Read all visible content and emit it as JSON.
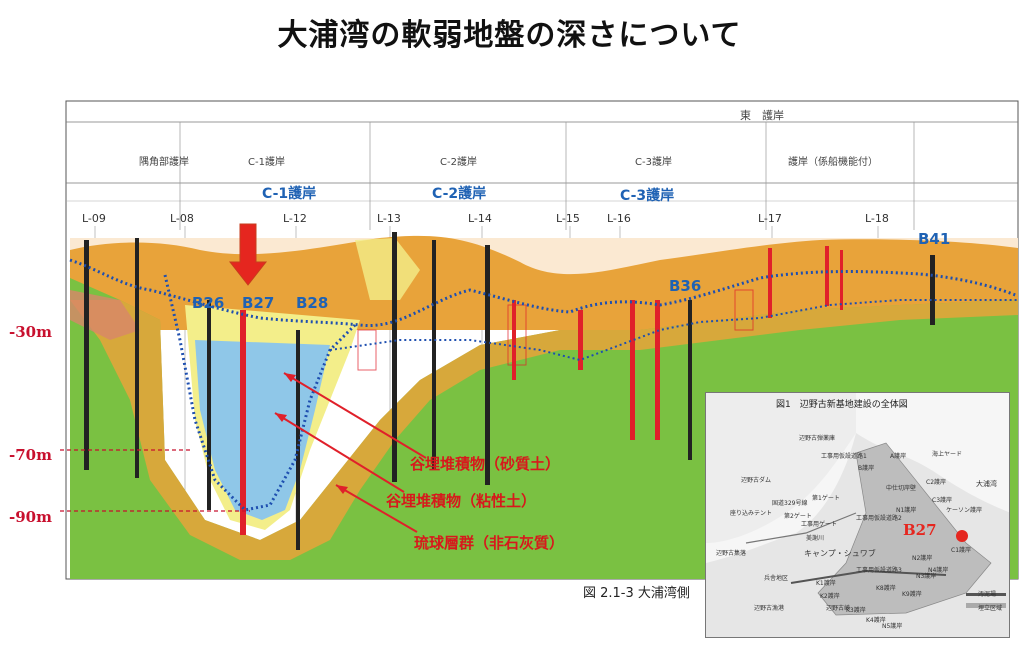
{
  "title": "大浦湾の軟弱地盤の深さについて",
  "depth_labels": [
    "-30m",
    "-70m",
    "-90m"
  ],
  "header": {
    "east_revetment": "東　護岸",
    "sections": [
      "隅角部護岸",
      "C-1護岸",
      "C-2護岸",
      "C-3護岸",
      "護岸（係船機能付）"
    ]
  },
  "revetment_labels": [
    "C-1護岸",
    "C-2護岸",
    "C-3護岸"
  ],
  "lines": [
    "L-09",
    "L-08",
    "L-12",
    "L-13",
    "L-14",
    "L-15",
    "L-16",
    "L-17",
    "L-18"
  ],
  "borings": [
    "B26",
    "B27",
    "B28",
    "B36",
    "B41"
  ],
  "annotations": [
    "谷埋堆積物（砂質土）",
    "谷埋堆積物（粘性土）",
    "琉球層群（非石灰質）"
  ],
  "figure_caption": "図 2.1-3 大浦湾側",
  "inset_map": {
    "title": "図1　辺野古新基地建設の全体図",
    "marker": "B27",
    "labels": [
      "辺野古弾薬庫",
      "工事用仮設道路1",
      "辺野古ダム",
      "海上ヤード",
      "大浦湾",
      "A護岸",
      "B護岸",
      "C1護岸",
      "C2護岸",
      "C3護岸",
      "ケーソン護岸",
      "N1護岸",
      "N2護岸",
      "N3護岸",
      "N4護岸",
      "N5護岸",
      "K1護岸",
      "K2護岸",
      "K3護岸",
      "K4護岸",
      "K8護岸",
      "K9護岸",
      "第1ゲート",
      "第2ゲート",
      "工事用ゲート",
      "座り込みテント",
      "国道329号線",
      "キャンプ・シュワブ",
      "辺野古集落",
      "辺野古漁港",
      "工事用仮設道路2",
      "工事用仮設道路3",
      "兵舎地区",
      "中仕切岸壁",
      "美謝川",
      "辺野古崎",
      "汚泥場",
      "埋立区域"
    ]
  },
  "colors": {
    "depth_red": "#c8102e",
    "arrow_red": "#e5261f",
    "annotation_red": "#d7191c",
    "label_blue": "#1f62b4",
    "boring_blue": "#1e4fb0",
    "green_layer": "#7ac142",
    "orange_layer": "#e8a33a",
    "yellow_layer": "#f3ee8a",
    "blue_layer": "#8fc7e8"
  }
}
